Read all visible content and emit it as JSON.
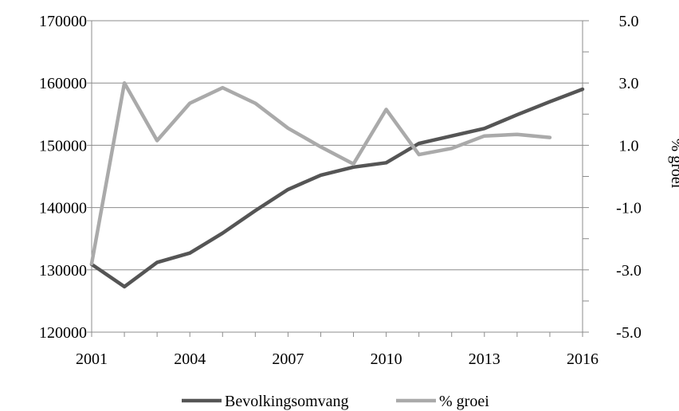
{
  "chart_data": {
    "type": "line",
    "title": "",
    "xlabel": "",
    "ylabel": "",
    "y2label": "% groei",
    "x": [
      2001,
      2002,
      2003,
      2004,
      2005,
      2006,
      2007,
      2008,
      2009,
      2010,
      2011,
      2012,
      2013,
      2014,
      2015,
      2016
    ],
    "x_ticks": [
      "2001",
      "2004",
      "2007",
      "2010",
      "2013",
      "2016"
    ],
    "xlim": [
      2001,
      2016
    ],
    "ylim": [
      120000,
      170000
    ],
    "y_ticks": [
      "120000",
      "130000",
      "140000",
      "150000",
      "160000",
      "170000"
    ],
    "y2lim": [
      -5.0,
      5.0
    ],
    "y2_ticks": [
      "-5.0",
      "-3.0",
      "-1.0",
      "1.0",
      "3.0",
      "5.0"
    ],
    "grid": "horizontal",
    "legend": "bottom",
    "series": [
      {
        "name": "Bevolkingsomvang",
        "axis": "left",
        "color": "#555555",
        "values": [
          130900,
          127300,
          131200,
          132700,
          135900,
          139500,
          142900,
          145200,
          146500,
          147200,
          150300,
          151500,
          152700,
          154900,
          157000,
          159000
        ]
      },
      {
        "name": "% groei",
        "axis": "right",
        "color": "#aaaaaa",
        "values": [
          -2.8,
          3.0,
          1.15,
          2.35,
          2.85,
          2.35,
          1.55,
          0.95,
          0.4,
          2.15,
          0.7,
          0.9,
          1.3,
          1.35,
          1.25,
          null
        ]
      }
    ]
  }
}
